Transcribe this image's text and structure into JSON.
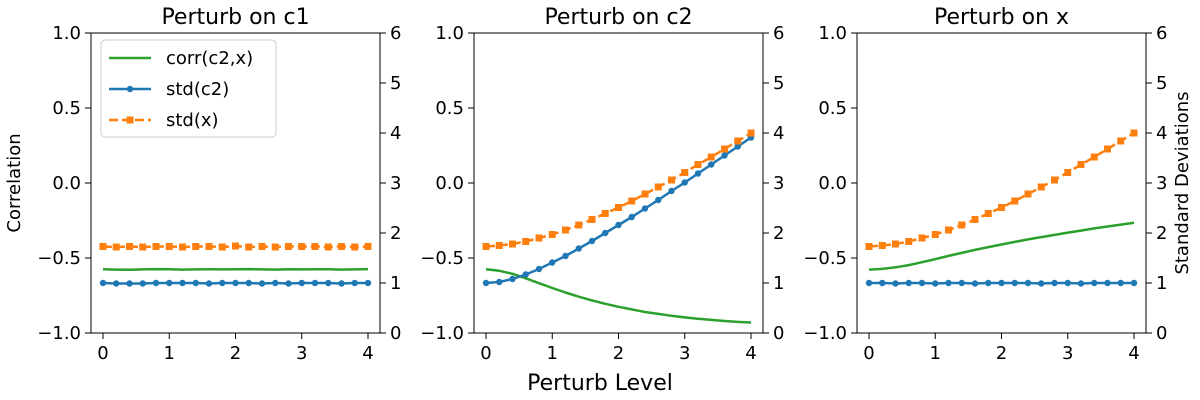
{
  "figure": {
    "xlabel": "Perturb Level",
    "left_ylabel": "Correlation",
    "right_ylabel": "Standard Deviations"
  },
  "legend": {
    "placement": "top-left",
    "entries": [
      "corr(c2,x)",
      "std(c2)",
      "std(x)"
    ]
  },
  "colors": {
    "corr": "#2ca02c",
    "std_c2": "#1f77b4",
    "std_x": "#ff7f0e"
  },
  "chart_data": [
    {
      "type": "line",
      "title": "Perturb on c1",
      "xlim": [
        0,
        4
      ],
      "xticks": [
        "0",
        "1",
        "2",
        "3",
        "4"
      ],
      "ylim_left": [
        -1.0,
        1.0
      ],
      "yticks_left": [
        "−1.0",
        "−0.5",
        "0.0",
        "0.5",
        "1.0"
      ],
      "ylim_right": [
        0,
        6
      ],
      "yticks_right": [
        "0",
        "1",
        "2",
        "3",
        "4",
        "5",
        "6"
      ],
      "x": [
        0,
        0.2,
        0.4,
        0.6,
        0.8,
        1.0,
        1.2,
        1.4,
        1.6,
        1.8,
        2.0,
        2.2,
        2.4,
        2.6,
        2.8,
        3.0,
        3.2,
        3.4,
        3.6,
        3.8,
        4.0
      ],
      "series": [
        {
          "name": "corr(c2,x)",
          "axis": "left",
          "marker": "none",
          "dash": false,
          "values": [
            -0.575,
            -0.577,
            -0.578,
            -0.576,
            -0.574,
            -0.575,
            -0.577,
            -0.576,
            -0.575,
            -0.576,
            -0.575,
            -0.574,
            -0.576,
            -0.577,
            -0.575,
            -0.576,
            -0.575,
            -0.575,
            -0.577,
            -0.576,
            -0.574
          ]
        },
        {
          "name": "std(c2)",
          "axis": "right",
          "marker": "circle",
          "dash": false,
          "values": [
            1.0,
            0.99,
            0.99,
            0.99,
            1.0,
            1.0,
            1.0,
            1.0,
            0.99,
            1.0,
            1.0,
            1.0,
            0.99,
            1.0,
            0.99,
            1.0,
            1.0,
            1.0,
            0.99,
            1.0,
            1.0
          ]
        },
        {
          "name": "std(x)",
          "axis": "right",
          "marker": "square",
          "dash": true,
          "values": [
            1.73,
            1.72,
            1.73,
            1.72,
            1.73,
            1.73,
            1.72,
            1.73,
            1.73,
            1.72,
            1.74,
            1.72,
            1.73,
            1.72,
            1.73,
            1.73,
            1.73,
            1.72,
            1.73,
            1.72,
            1.73
          ]
        }
      ]
    },
    {
      "type": "line",
      "title": "Perturb on c2",
      "xlim": [
        0,
        4
      ],
      "xticks": [
        "0",
        "1",
        "2",
        "3",
        "4"
      ],
      "ylim_left": [
        -1.0,
        1.0
      ],
      "yticks_left": [
        "−1.0",
        "−0.5",
        "0.0",
        "0.5",
        "1.0"
      ],
      "ylim_right": [
        0,
        6
      ],
      "yticks_right": [
        "0",
        "1",
        "2",
        "3",
        "4",
        "5",
        "6"
      ],
      "x": [
        0,
        0.2,
        0.4,
        0.6,
        0.8,
        1.0,
        1.2,
        1.4,
        1.6,
        1.8,
        2.0,
        2.2,
        2.4,
        2.6,
        2.8,
        3.0,
        3.2,
        3.4,
        3.6,
        3.8,
        4.0
      ],
      "series": [
        {
          "name": "corr(c2,x)",
          "axis": "left",
          "marker": "none",
          "dash": false,
          "values": [
            -0.575,
            -0.585,
            -0.605,
            -0.635,
            -0.668,
            -0.7,
            -0.73,
            -0.758,
            -0.783,
            -0.805,
            -0.825,
            -0.843,
            -0.86,
            -0.873,
            -0.885,
            -0.896,
            -0.905,
            -0.913,
            -0.92,
            -0.926,
            -0.93
          ]
        },
        {
          "name": "std(c2)",
          "axis": "right",
          "marker": "circle",
          "dash": false,
          "values": [
            1.0,
            1.02,
            1.08,
            1.17,
            1.28,
            1.41,
            1.54,
            1.69,
            1.84,
            2.0,
            2.16,
            2.32,
            2.49,
            2.66,
            2.84,
            3.01,
            3.19,
            3.37,
            3.55,
            3.73,
            3.91
          ]
        },
        {
          "name": "std(x)",
          "axis": "right",
          "marker": "square",
          "dash": true,
          "values": [
            1.73,
            1.75,
            1.78,
            1.83,
            1.9,
            1.97,
            2.06,
            2.16,
            2.27,
            2.39,
            2.51,
            2.64,
            2.78,
            2.92,
            3.06,
            3.21,
            3.37,
            3.52,
            3.68,
            3.84,
            4.0
          ]
        }
      ]
    },
    {
      "type": "line",
      "title": "Perturb on x",
      "xlim": [
        0,
        4
      ],
      "xticks": [
        "0",
        "1",
        "2",
        "3",
        "4"
      ],
      "ylim_left": [
        -1.0,
        1.0
      ],
      "yticks_left": [
        "−1.0",
        "−0.5",
        "0.0",
        "0.5",
        "1.0"
      ],
      "ylim_right": [
        0,
        6
      ],
      "yticks_right": [
        "0",
        "1",
        "2",
        "3",
        "4",
        "5",
        "6"
      ],
      "x": [
        0,
        0.2,
        0.4,
        0.6,
        0.8,
        1.0,
        1.2,
        1.4,
        1.6,
        1.8,
        2.0,
        2.2,
        2.4,
        2.6,
        2.8,
        3.0,
        3.2,
        3.4,
        3.6,
        3.8,
        4.0
      ],
      "series": [
        {
          "name": "corr(c2,x)",
          "axis": "left",
          "marker": "none",
          "dash": false,
          "values": [
            -0.577,
            -0.573,
            -0.562,
            -0.547,
            -0.528,
            -0.507,
            -0.486,
            -0.466,
            -0.446,
            -0.427,
            -0.41,
            -0.393,
            -0.376,
            -0.361,
            -0.346,
            -0.331,
            -0.317,
            -0.303,
            -0.29,
            -0.277,
            -0.265
          ]
        },
        {
          "name": "std(c2)",
          "axis": "right",
          "marker": "circle",
          "dash": false,
          "values": [
            1.0,
            1.0,
            0.99,
            1.0,
            1.0,
            0.99,
            1.0,
            1.0,
            0.99,
            1.0,
            1.0,
            1.0,
            1.0,
            0.99,
            1.0,
            1.0,
            0.99,
            1.0,
            1.0,
            1.0,
            1.0
          ]
        },
        {
          "name": "std(x)",
          "axis": "right",
          "marker": "square",
          "dash": true,
          "values": [
            1.73,
            1.75,
            1.78,
            1.83,
            1.9,
            1.97,
            2.06,
            2.16,
            2.27,
            2.39,
            2.51,
            2.64,
            2.78,
            2.92,
            3.06,
            3.21,
            3.37,
            3.52,
            3.68,
            3.84,
            4.0
          ]
        }
      ]
    }
  ]
}
